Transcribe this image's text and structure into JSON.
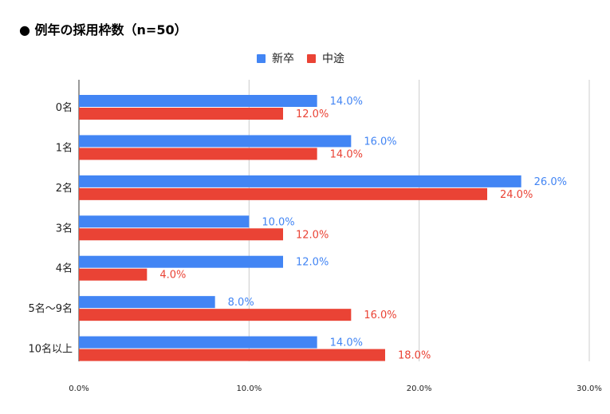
{
  "title": "● 例年の採用枠数（n=50）",
  "colors": {
    "shinsotsu": "#4285f4",
    "chuto": "#ea4335",
    "grid": "#cccccc",
    "axis": "#333333"
  },
  "chart_data": {
    "type": "bar",
    "orientation": "horizontal",
    "title": "● 例年の採用枠数（n=50）",
    "categories": [
      "0名",
      "1名",
      "2名",
      "3名",
      "4名",
      "5名〜9名",
      "10名以上"
    ],
    "series": [
      {
        "name": "新卒",
        "values": [
          14.0,
          16.0,
          26.0,
          10.0,
          12.0,
          8.0,
          14.0
        ],
        "labels": [
          "14.0%",
          "16.0%",
          "26.0%",
          "10.0%",
          "12.0%",
          "8.0%",
          "14.0%"
        ]
      },
      {
        "name": "中途",
        "values": [
          12.0,
          14.0,
          24.0,
          12.0,
          4.0,
          16.0,
          18.0
        ],
        "labels": [
          "12.0%",
          "14.0%",
          "24.0%",
          "12.0%",
          "4.0%",
          "16.0%",
          "18.0%"
        ]
      }
    ],
    "xlim": [
      0,
      30
    ],
    "xticks": [
      0,
      10,
      20,
      30
    ],
    "xtick_labels": [
      "0.0%",
      "10.0%",
      "20.0%",
      "30.0%"
    ],
    "grid": true,
    "legend_position": "top-center"
  }
}
